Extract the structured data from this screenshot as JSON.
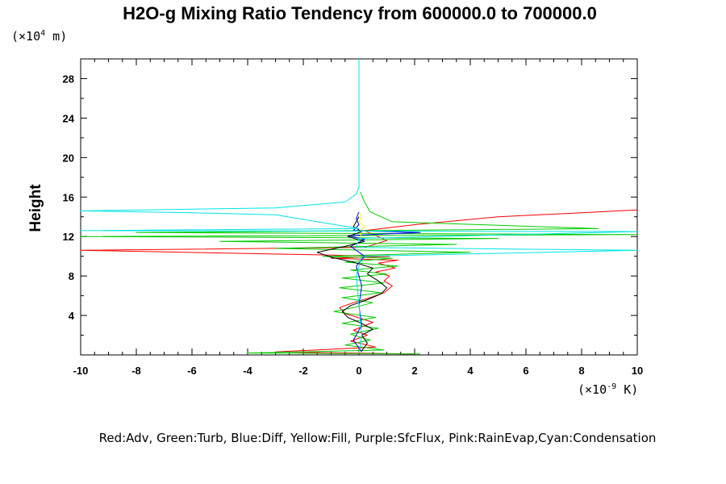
{
  "chart_data": {
    "type": "line",
    "title": "H2O-g Mixing Ratio Tendency from 600000.0 to 700000.0",
    "ylabel": "Height",
    "y_unit_prefix": "(×10",
    "y_unit_exp": "4",
    "y_unit_suffix": " m)",
    "x_unit_prefix": "(×10",
    "x_unit_exp": "-9",
    "x_unit_suffix": " K)",
    "xlim": [
      -10,
      10
    ],
    "ylim": [
      0,
      30
    ],
    "xticks": [
      -10,
      -8,
      -6,
      -4,
      -2,
      0,
      2,
      4,
      6,
      8,
      10
    ],
    "yticks": [
      4,
      8,
      12,
      16,
      20,
      24,
      28
    ],
    "legend": "Red:Adv, Green:Turb, Blue:Diff, Yellow:Fill, Purple:SfcFlux, Pink:RainEvap,Cyan:Condensation",
    "series": [
      {
        "key": "adv",
        "color": "#ff0000",
        "points": [
          [
            2,
            0.1
          ],
          [
            -3,
            0.3
          ],
          [
            0.6,
            0.8
          ],
          [
            -0.3,
            1.4
          ],
          [
            0.3,
            2
          ],
          [
            -0.2,
            2.5
          ],
          [
            0.5,
            3.3
          ],
          [
            -0.5,
            4.2
          ],
          [
            -0.7,
            4.8
          ],
          [
            -0.2,
            5.3
          ],
          [
            0.4,
            5.8
          ],
          [
            0.9,
            6.3
          ],
          [
            1.2,
            7
          ],
          [
            0.9,
            7.5
          ],
          [
            1.1,
            8
          ],
          [
            0.6,
            8.4
          ],
          [
            1.3,
            8.8
          ],
          [
            0.7,
            9.3
          ],
          [
            1.4,
            9.6
          ],
          [
            -1,
            9.8
          ],
          [
            1.1,
            10
          ],
          [
            -2.5,
            10.2
          ],
          [
            -10,
            10.6
          ],
          [
            0.2,
            10.9
          ],
          [
            1,
            11.6
          ],
          [
            0.2,
            12.6
          ],
          [
            2,
            13.2
          ],
          [
            5,
            14
          ],
          [
            8,
            14.4
          ],
          [
            10,
            14.7
          ]
        ]
      },
      {
        "key": "turb",
        "color": "#00cc00",
        "points": [
          [
            2.2,
            0.1
          ],
          [
            -4,
            0.2
          ],
          [
            0.9,
            0.5
          ],
          [
            -0.5,
            1
          ],
          [
            0.4,
            1.5
          ],
          [
            -0.3,
            2.1
          ],
          [
            0.7,
            2.7
          ],
          [
            -0.6,
            3.2
          ],
          [
            0.6,
            3.8
          ],
          [
            -0.9,
            4.4
          ],
          [
            -0.2,
            4.8
          ],
          [
            0.5,
            5.3
          ],
          [
            -0.6,
            5.8
          ],
          [
            0.8,
            6.3
          ],
          [
            -0.7,
            6.8
          ],
          [
            0.9,
            7.3
          ],
          [
            -0.6,
            7.8
          ],
          [
            1,
            8.2
          ],
          [
            -0.3,
            8.6
          ],
          [
            1.4,
            9
          ],
          [
            -0.5,
            9.4
          ],
          [
            1.2,
            9.8
          ],
          [
            -1.3,
            10
          ],
          [
            4,
            10.4
          ],
          [
            -3,
            10.8
          ],
          [
            3.5,
            11.2
          ],
          [
            -5,
            11.5
          ],
          [
            5,
            11.8
          ],
          [
            -10,
            12
          ],
          [
            10,
            12.2
          ],
          [
            -8,
            12.4
          ],
          [
            8.6,
            12.8
          ],
          [
            1.2,
            13.5
          ],
          [
            0.4,
            14.5
          ],
          [
            0.2,
            15.5
          ],
          [
            0.05,
            16.5
          ]
        ]
      },
      {
        "key": "diff",
        "color": "#0000dd",
        "points": [
          [
            0.1,
            0.3
          ],
          [
            -0.2,
            1.5
          ],
          [
            0.1,
            3
          ],
          [
            0,
            5
          ],
          [
            0.1,
            7
          ],
          [
            -0.1,
            9
          ],
          [
            0.2,
            10
          ],
          [
            -0.3,
            11
          ],
          [
            0.2,
            11.7
          ],
          [
            -0.4,
            12.1
          ],
          [
            2.2,
            12.4
          ],
          [
            -0.2,
            12.6
          ],
          [
            0,
            13.2
          ],
          [
            -0.1,
            13.8
          ],
          [
            0,
            14.5
          ]
        ]
      },
      {
        "key": "fill",
        "color": "#ffff00",
        "points": [
          [
            0.1,
            12
          ],
          [
            0,
            12.5
          ],
          [
            0.2,
            13
          ],
          [
            0,
            13.5
          ],
          [
            0.1,
            14
          ],
          [
            0,
            14.5
          ]
        ]
      },
      {
        "key": "net",
        "color": "#000000",
        "points": [
          [
            0.1,
            0.4
          ],
          [
            0.3,
            1.2
          ],
          [
            0.1,
            2
          ],
          [
            0.5,
            2.6
          ],
          [
            0.1,
            3.2
          ],
          [
            -0.4,
            3.8
          ],
          [
            -0.6,
            4.4
          ],
          [
            -0.3,
            5
          ],
          [
            0.3,
            5.6
          ],
          [
            0.8,
            6.2
          ],
          [
            1,
            6.8
          ],
          [
            0.7,
            7.5
          ],
          [
            0.3,
            8.2
          ],
          [
            0.5,
            8.8
          ],
          [
            -0.2,
            9.4
          ],
          [
            -1,
            9.9
          ],
          [
            -1.5,
            10.4
          ],
          [
            -0.5,
            11
          ],
          [
            0.2,
            11.5
          ],
          [
            -0.4,
            12
          ],
          [
            0.1,
            12.5
          ],
          [
            -0.2,
            13
          ],
          [
            0,
            14
          ]
        ]
      },
      {
        "key": "cond",
        "color": "#00e5e5",
        "points": [
          [
            0,
            0.2
          ],
          [
            0.1,
            2
          ],
          [
            0,
            5
          ],
          [
            -0.1,
            8
          ],
          [
            0.1,
            10
          ],
          [
            10,
            10.6
          ],
          [
            -0.1,
            10.9
          ],
          [
            0,
            11.8
          ],
          [
            10,
            12.5
          ],
          [
            -10,
            12.6
          ],
          [
            0,
            12.8
          ],
          [
            -3,
            14.2
          ],
          [
            -6,
            14.4
          ],
          [
            -10,
            14.6
          ],
          [
            -3,
            14.9
          ],
          [
            -0.5,
            15.5
          ],
          [
            -0.1,
            16.3
          ],
          [
            0,
            17
          ],
          [
            0,
            30
          ]
        ]
      }
    ]
  }
}
